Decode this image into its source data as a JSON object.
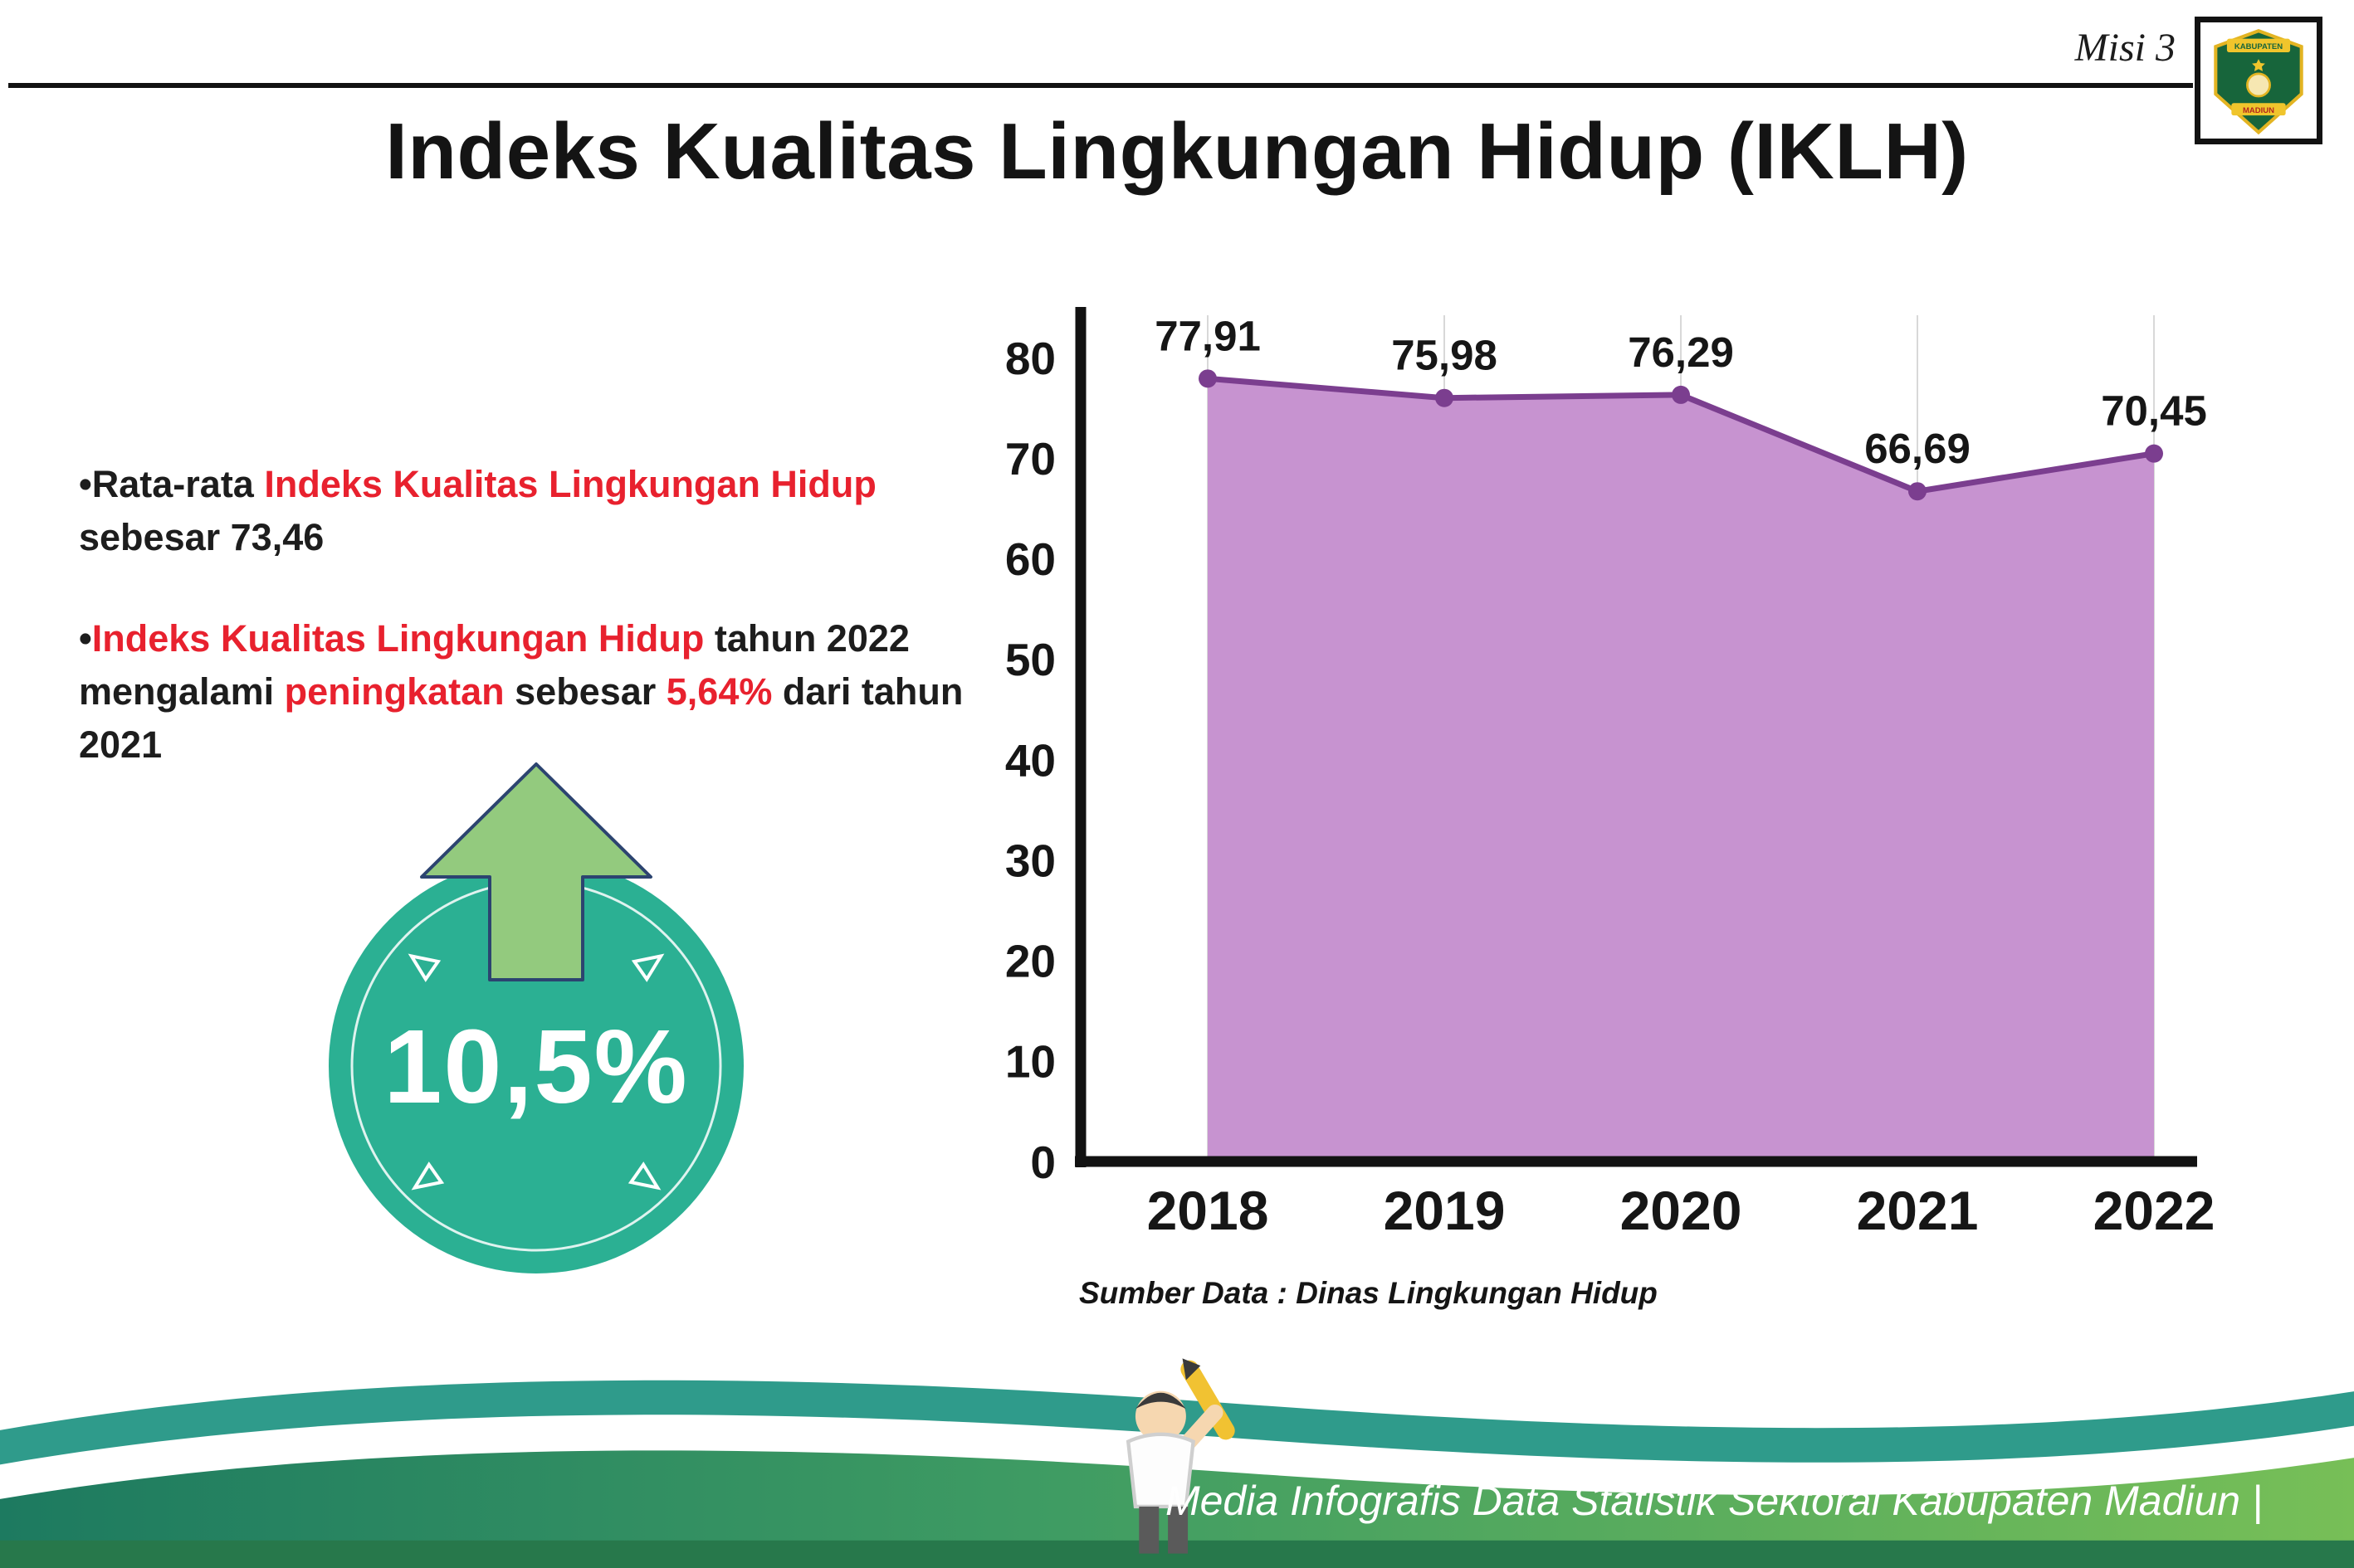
{
  "colors": {
    "accent_red": "#e8212e",
    "title_black": "#141414",
    "badge_teal": "#2bb093",
    "arrow_green": "#93ca7e",
    "line_purple": "#7b3e8f",
    "fill_purple": "#c793d0",
    "footer_teal": "#2f9b8b",
    "footer_green_dark": "#1d7a60",
    "footer_green_light": "#77bf57"
  },
  "header": {
    "misi_label": "Misi 3",
    "title": "Indeks Kualitas Lingkungan Hidup (IKLH)",
    "logo": {
      "top_text": "KABUPATEN",
      "bottom_text": "MADIUN"
    }
  },
  "bullets": {
    "marker": "•",
    "b1": [
      "Rata-rata ",
      "Indeks Kualitas Lingkungan Hidup",
      " sebesar 73,46"
    ],
    "b2": [
      "Indeks Kualitas Lingkungan Hidup",
      " tahun 2022 mengalami ",
      "peningkatan",
      " sebesar ",
      "5,64%",
      " dari tahun 2021"
    ]
  },
  "badge": {
    "value": "10,5%"
  },
  "chart_data": {
    "type": "area",
    "title": "",
    "categories": [
      "2018",
      "2019",
      "2020",
      "2021",
      "2022"
    ],
    "values": [
      77.91,
      75.98,
      76.29,
      66.69,
      70.45
    ],
    "value_labels": [
      "77,91",
      "75,98",
      "76,29",
      "66,69",
      "70,45"
    ],
    "ylim": [
      0,
      80
    ],
    "yticks": [
      0,
      10,
      20,
      30,
      40,
      50,
      60,
      70,
      80
    ],
    "grid": "vertical-light",
    "legend": "none",
    "line_color": "#7b3e8f",
    "fill_color": "#c793d0",
    "source": "Sumber Data : Dinas Lingkungan Hidup"
  },
  "footer": {
    "text": "Media Infografis Data Statistik Sektoral Kabupaten Madiun |"
  }
}
